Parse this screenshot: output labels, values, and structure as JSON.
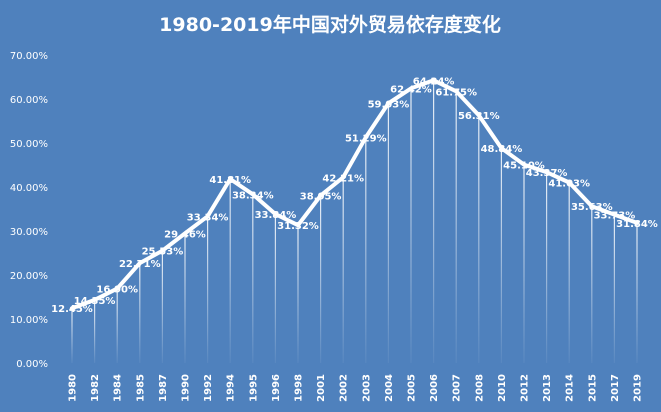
{
  "chart_data": {
    "type": "line",
    "title": "1980-2019年中国对外贸易依存度变化",
    "categories": [
      "1980",
      "1982",
      "1984",
      "1985",
      "1987",
      "1990",
      "1992",
      "1994",
      "1995",
      "1996",
      "1998",
      "2001",
      "2002",
      "2003",
      "2004",
      "2005",
      "2006",
      "2007",
      "2008",
      "2010",
      "2012",
      "2013",
      "2014",
      "2015",
      "2017",
      "2019"
    ],
    "series": [
      {
        "values": [
          12.45,
          14.35,
          16.9,
          22.71,
          25.53,
          29.46,
          33.34,
          41.81,
          38.34,
          33.84,
          31.32,
          38.05,
          42.21,
          51.29,
          59.03,
          62.42,
          64.24,
          61.75,
          56.31,
          48.84,
          45.1,
          43.37,
          41.03,
          35.63,
          33.73,
          31.84
        ]
      }
    ],
    "data_labels": [
      "12.45%",
      "14.35%",
      "16.90%",
      "22.71%",
      "25.53%",
      "29.46%",
      "33.34%",
      "41.81%",
      "38.34%",
      "33.84%",
      "31.32%",
      "38.05%",
      "42.21%",
      "51.29%",
      "59.03%",
      "62.42%",
      "64.24%",
      "61.75%",
      "56.31%",
      "48.84%",
      "45.10%",
      "43.37%",
      "41.03%",
      "35.63%",
      "33.73%",
      "31.84%"
    ],
    "y_ticks": [
      "0.00%",
      "10.00%",
      "20.00%",
      "30.00%",
      "40.00%",
      "50.00%",
      "60.00%",
      "70.00%"
    ],
    "ylim": [
      0,
      70
    ],
    "xlabel": "",
    "ylabel": "",
    "grid": false,
    "drop_lines": true,
    "colors": {
      "background": "#4f81bd",
      "line": "#ffffff",
      "text": "#ffffff"
    }
  }
}
